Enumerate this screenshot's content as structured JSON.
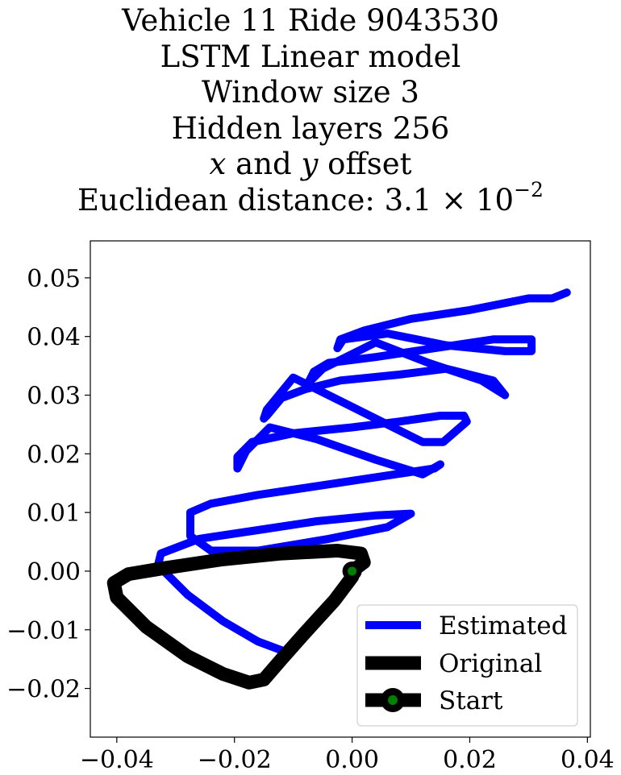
{
  "title": {
    "line1": "Vehicle 11 Ride 9043530",
    "line2": "LSTM Linear model",
    "line3": "Window size 3",
    "line4": "Hidden layers 256",
    "line5_x": "x",
    "line5_mid": " and ",
    "line5_y": "y",
    "line5_end": " offset",
    "line6_prefix": "Euclidean distance: 3.1 × 10",
    "line6_exp": "−2"
  },
  "chart_data": {
    "type": "line",
    "xlim": [
      -0.0445,
      0.0405
    ],
    "ylim": [
      -0.0283,
      0.0563
    ],
    "x_ticks": [
      -0.04,
      -0.02,
      0.0,
      0.02,
      0.04
    ],
    "x_tick_labels": [
      "−0.04",
      "−0.02",
      "0.00",
      "0.02",
      "0.04"
    ],
    "y_ticks": [
      0.05,
      0.04,
      0.03,
      0.02,
      0.01,
      0.0,
      -0.01,
      -0.02
    ],
    "y_tick_labels": [
      "0.05",
      "0.04",
      "0.03",
      "0.02",
      "0.01",
      "0.00",
      "−0.01",
      "−0.02"
    ],
    "grid": false,
    "legend_position": "lower-right",
    "series": [
      {
        "name": "Estimated",
        "color": "#0000ff",
        "points": [
          [
            -0.012,
            -0.0135
          ],
          [
            -0.016,
            -0.012
          ],
          [
            -0.022,
            -0.0085
          ],
          [
            -0.028,
            -0.004
          ],
          [
            -0.033,
            0.001
          ],
          [
            -0.0325,
            0.003
          ],
          [
            -0.026,
            0.0055
          ],
          [
            -0.016,
            0.007
          ],
          [
            -0.006,
            0.0085
          ],
          [
            0.004,
            0.0095
          ],
          [
            0.01,
            0.0098
          ],
          [
            0.006,
            0.0075
          ],
          [
            -0.004,
            0.0055
          ],
          [
            -0.016,
            0.0035
          ],
          [
            -0.024,
            0.0035
          ],
          [
            -0.0275,
            0.006
          ],
          [
            -0.0275,
            0.01
          ],
          [
            -0.024,
            0.0115
          ],
          [
            -0.016,
            0.013
          ],
          [
            -0.006,
            0.0145
          ],
          [
            0.004,
            0.016
          ],
          [
            0.014,
            0.0175
          ],
          [
            0.015,
            0.0182
          ],
          [
            0.012,
            0.0165
          ],
          [
            0.004,
            0.019
          ],
          [
            -0.006,
            0.0225
          ],
          [
            -0.014,
            0.0245
          ],
          [
            -0.018,
            0.0205
          ],
          [
            -0.0195,
            0.0175
          ],
          [
            -0.0195,
            0.0195
          ],
          [
            -0.017,
            0.022
          ],
          [
            -0.01,
            0.0235
          ],
          [
            0.0,
            0.0245
          ],
          [
            0.008,
            0.0255
          ],
          [
            0.015,
            0.0265
          ],
          [
            0.019,
            0.0265
          ],
          [
            0.0195,
            0.0255
          ],
          [
            0.0155,
            0.022
          ],
          [
            0.012,
            0.022
          ],
          [
            0.004,
            0.026
          ],
          [
            -0.004,
            0.03
          ],
          [
            -0.01,
            0.033
          ],
          [
            -0.0145,
            0.0275
          ],
          [
            -0.015,
            0.026
          ],
          [
            -0.0145,
            0.0265
          ],
          [
            -0.012,
            0.0295
          ],
          [
            -0.008,
            0.031
          ],
          [
            -0.002,
            0.0325
          ],
          [
            0.008,
            0.0335
          ],
          [
            0.016,
            0.0345
          ],
          [
            0.024,
            0.0325
          ],
          [
            0.026,
            0.03
          ],
          [
            0.022,
            0.0325
          ],
          [
            0.013,
            0.0355
          ],
          [
            0.004,
            0.039
          ],
          [
            -0.005,
            0.0345
          ],
          [
            -0.0075,
            0.032
          ],
          [
            -0.0065,
            0.034
          ],
          [
            -0.004,
            0.0355
          ],
          [
            0.004,
            0.0365
          ],
          [
            0.014,
            0.038
          ],
          [
            0.024,
            0.0395
          ],
          [
            0.0305,
            0.0395
          ],
          [
            0.0305,
            0.0375
          ],
          [
            0.026,
            0.0375
          ],
          [
            0.016,
            0.0385
          ],
          [
            0.006,
            0.0405
          ],
          [
            -0.0015,
            0.0395
          ],
          [
            -0.0025,
            0.038
          ],
          [
            -0.002,
            0.0395
          ],
          [
            0.002,
            0.041
          ],
          [
            0.01,
            0.043
          ],
          [
            0.02,
            0.0445
          ],
          [
            0.03,
            0.0465
          ],
          [
            0.034,
            0.0465
          ],
          [
            0.0365,
            0.0475
          ]
        ]
      },
      {
        "name": "Original",
        "color": "#000000",
        "points": [
          [
            0.0,
            0.0
          ],
          [
            0.002,
            0.0015
          ],
          [
            0.0015,
            0.003
          ],
          [
            -0.0025,
            0.0035
          ],
          [
            -0.012,
            0.003
          ],
          [
            -0.022,
            0.002
          ],
          [
            -0.032,
            0.0005
          ],
          [
            -0.038,
            -0.0005
          ],
          [
            -0.0405,
            -0.002
          ],
          [
            -0.04,
            -0.0045
          ],
          [
            -0.035,
            -0.0095
          ],
          [
            -0.028,
            -0.0145
          ],
          [
            -0.022,
            -0.0175
          ],
          [
            -0.0175,
            -0.019
          ],
          [
            -0.015,
            -0.0185
          ],
          [
            -0.012,
            -0.015
          ],
          [
            -0.008,
            -0.0105
          ],
          [
            -0.003,
            -0.005
          ],
          [
            0.0,
            -0.001
          ],
          [
            0.0,
            0.0
          ]
        ]
      }
    ],
    "start_point": {
      "x": 0.0,
      "y": 0.0,
      "name": "Start",
      "color": "#008000"
    }
  },
  "legend": {
    "items": [
      {
        "name": "Estimated",
        "color": "#0000ff"
      },
      {
        "name": "Original",
        "color": "#000000"
      },
      {
        "name": "Start",
        "color": "#000000",
        "marker_color": "#008000"
      }
    ]
  }
}
